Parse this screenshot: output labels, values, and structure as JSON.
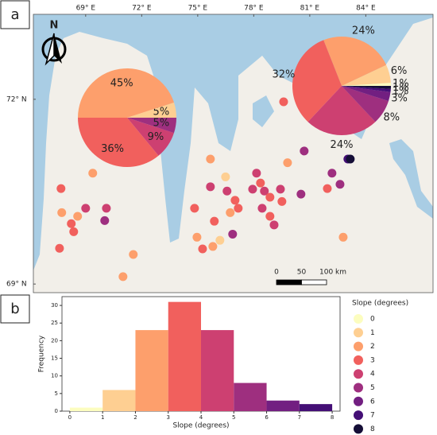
{
  "map": {
    "panel_label": "a",
    "north": "N",
    "lonlim": [
      66.2,
      87.6
    ],
    "latlim": [
      68.86,
      73.38
    ],
    "lon_ticks": [
      {
        "value": 69,
        "label": "69° E"
      },
      {
        "value": 72,
        "label": "72° E"
      },
      {
        "value": 75,
        "label": "75° E"
      },
      {
        "value": 78,
        "label": "78° E"
      },
      {
        "value": 81,
        "label": "81° E"
      },
      {
        "value": 84,
        "label": "84° E"
      }
    ],
    "lat_ticks": [
      {
        "value": 72,
        "label": "72° N"
      },
      {
        "value": 69,
        "label": "69° N"
      }
    ],
    "scale_bar": [
      {
        "value": 0,
        "label": "0"
      },
      {
        "value": 50,
        "label": "50"
      },
      {
        "value": 100,
        "label": "100 km"
      }
    ],
    "points": {
      "lon": [
        69.38,
        67.68,
        67.72,
        68.57,
        69.0,
        68.36,
        68.23,
        67.6,
        70.11,
        70.02,
        71.55,
        71.0,
        74.83,
        75.68,
        75.68,
        76.49,
        76.57,
        77.0,
        77.17,
        76.74,
        75.89,
        74.96,
        75.26,
        75.81,
        76.19,
        76.87,
        78.15,
        78.36,
        77.94,
        78.57,
        78.87,
        79.43,
        78.45,
        78.87,
        79.09,
        79.51,
        80.53,
        79.81,
        79.6,
        80.7,
        82.19,
        81.94,
        82.62,
        83.04,
        83.17,
        82.79
      ],
      "lat": [
        70.8,
        70.55,
        70.16,
        70.1,
        70.23,
        69.85,
        69.98,
        69.58,
        70.23,
        70.03,
        69.48,
        69.12,
        70.23,
        71.03,
        70.58,
        70.74,
        70.51,
        70.36,
        70.23,
        70.16,
        70.02,
        69.76,
        69.57,
        69.61,
        69.71,
        69.81,
        70.8,
        70.64,
        70.54,
        70.51,
        70.41,
        70.54,
        70.23,
        70.1,
        69.96,
        70.34,
        70.46,
        70.97,
        71.96,
        71.16,
        70.8,
        70.55,
        70.62,
        71.03,
        71.03,
        69.76
      ],
      "slope": [
        2,
        3,
        2,
        2,
        4,
        3,
        3,
        3,
        4,
        5,
        2,
        2,
        3,
        2,
        4,
        1,
        4,
        3,
        3,
        2,
        3,
        2,
        3,
        2,
        1,
        5,
        4,
        3,
        4,
        4,
        3,
        4,
        4,
        3,
        4,
        3,
        5,
        2,
        3,
        5,
        5,
        3,
        5,
        7,
        8,
        2
      ]
    },
    "pies": [
      {
        "slope": [
          1,
          2,
          3,
          4,
          5
        ],
        "values": [
          5,
          45,
          36,
          9,
          5
        ],
        "value_labels": [
          "5%",
          "45%",
          "36%",
          "9%",
          "5%"
        ]
      },
      {
        "slope": [
          0,
          1,
          2,
          3,
          4,
          5,
          6,
          7,
          8
        ],
        "values": [
          1,
          6,
          24,
          32,
          24,
          8,
          3,
          1,
          1
        ],
        "value_labels": [
          "1%",
          "6%",
          "24%",
          "32%",
          "24%",
          "8%",
          "3%",
          "1%",
          "1%"
        ]
      }
    ]
  },
  "chart_data": {
    "type": "histogram",
    "panel_label": "b",
    "bins": [
      0,
      1,
      2,
      3,
      4,
      5,
      6,
      7,
      8
    ],
    "values": [
      1,
      6,
      23,
      31,
      23,
      8,
      3,
      2
    ],
    "xlim": [
      -0.24,
      8.24
    ],
    "ylim": [
      0,
      32.5
    ],
    "xticks": [
      0,
      1,
      2,
      3,
      4,
      5,
      6,
      7,
      8
    ],
    "yticks": [
      0,
      5,
      10,
      15,
      20,
      25,
      30
    ],
    "xlabel": "Slope (degrees)",
    "ylabel": "Frequency",
    "legend_title": "Slope (degrees)",
    "classes": [
      0,
      1,
      2,
      3,
      4,
      5,
      6,
      7,
      8
    ],
    "colors": [
      "#fcfdbf",
      "#fecf92",
      "#fd9f6c",
      "#f1605d",
      "#cd4071",
      "#9e2f7f",
      "#721f81",
      "#440f76",
      "#150e37"
    ]
  }
}
